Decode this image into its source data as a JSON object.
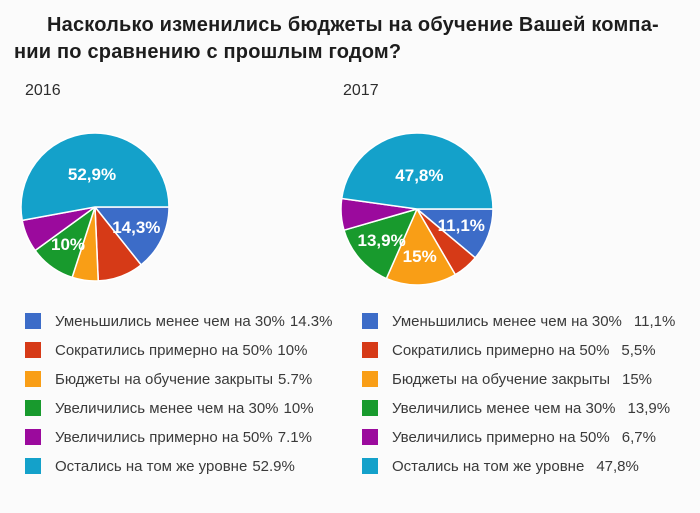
{
  "title": {
    "line1": "Насколько изменились бюджеты на обучение Вашей компа-",
    "line2": "нии по сравнению с прошлым годом?"
  },
  "palette": {
    "blue": "#3c6cc8",
    "red": "#d63a17",
    "orange": "#f99e16",
    "green": "#189a2d",
    "purple": "#9b0a9d",
    "cyan": "#14a1ca",
    "slice_separator": "#ffffff",
    "text_dark": "#1d1d1d",
    "legend_text": "#3a3a3a"
  },
  "chart_data": [
    {
      "type": "pie",
      "year": "2016",
      "start_angle_deg": 0,
      "direction": "clockwise",
      "slices": [
        {
          "label": "Уменьшились менее чем на 30%",
          "value": 14.3,
          "color": "#3c6cc8",
          "pie_label": "14,3%",
          "legend_value": "14.3%"
        },
        {
          "label": "Сократились примерно на 50%",
          "value": 10,
          "color": "#d63a17",
          "pie_label": "",
          "legend_value": "10%"
        },
        {
          "label": "Бюджеты на обучение закрыты",
          "value": 5.7,
          "color": "#f99e16",
          "pie_label": "",
          "legend_value": "5.7%"
        },
        {
          "label": "Увеличились менее чем на 30%",
          "value": 10,
          "color": "#189a2d",
          "pie_label": "10%",
          "legend_value": "10%"
        },
        {
          "label": "Увеличились примерно на 50%",
          "value": 7.1,
          "color": "#9b0a9d",
          "pie_label": "",
          "legend_value": "7.1%"
        },
        {
          "label": "Остались на том же уровне",
          "value": 52.9,
          "color": "#14a1ca",
          "pie_label": "52,9%",
          "legend_value": "52.9%"
        }
      ]
    },
    {
      "type": "pie",
      "year": "2017",
      "start_angle_deg": 0,
      "direction": "clockwise",
      "slices": [
        {
          "label": "Уменьшились менее чем на 30%",
          "value": 11.1,
          "color": "#3c6cc8",
          "pie_label": "11,1%",
          "legend_value": "11,1%"
        },
        {
          "label": "Сократились примерно на 50%",
          "value": 5.5,
          "color": "#d63a17",
          "pie_label": "",
          "legend_value": "5,5%"
        },
        {
          "label": "Бюджеты на обучение закрыты",
          "value": 15,
          "color": "#f99e16",
          "pie_label": "15%",
          "legend_value": "15%"
        },
        {
          "label": "Увеличились менее чем на 30%",
          "value": 13.9,
          "color": "#189a2d",
          "pie_label": "13,9%",
          "legend_value": "13,9%"
        },
        {
          "label": "Увеличились примерно на 50%",
          "value": 6.7,
          "color": "#9b0a9d",
          "pie_label": "",
          "legend_value": "6,7%"
        },
        {
          "label": "Остались на том же уровне",
          "value": 47.8,
          "color": "#14a1ca",
          "pie_label": "47,8%",
          "legend_value": "47,8%"
        }
      ]
    }
  ]
}
